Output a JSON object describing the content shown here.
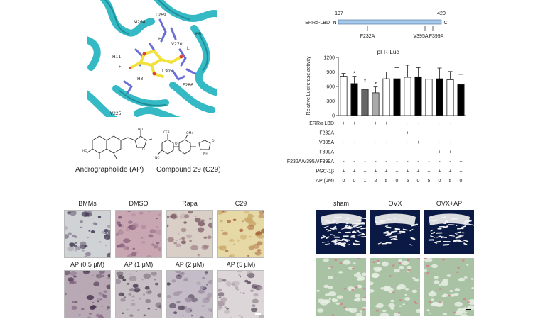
{
  "structure": {
    "residue_labels": [
      "M268",
      "L269",
      "H5",
      "V270",
      "L",
      "H11",
      "H",
      "L305",
      "H3",
      "F286",
      "V225",
      "F"
    ]
  },
  "compounds": [
    {
      "name": "Andrographolide (AP)"
    },
    {
      "name": "Compound 29 (C29)"
    }
  ],
  "construct": {
    "name": "ERRα-LBD",
    "n_term": "N",
    "c_term": "C",
    "start": "197",
    "end": "420",
    "mutations": [
      "F232A",
      "V395A",
      "F399A"
    ]
  },
  "chart_data": {
    "type": "bar",
    "title": "pFR-Luc",
    "ylabel": "Relative Luciferase activity",
    "ylim": [
      0,
      1200
    ],
    "yticks": [
      "0",
      "300",
      "600",
      "900",
      "1200"
    ],
    "values": [
      810,
      660,
      540,
      470,
      760,
      760,
      790,
      800,
      750,
      760,
      740,
      640
    ],
    "errors": [
      60,
      150,
      110,
      120,
      140,
      230,
      250,
      190,
      150,
      220,
      170,
      210
    ],
    "fills": [
      "white",
      "black",
      "#666666",
      "#aaaaaa",
      "white",
      "black",
      "white",
      "black",
      "white",
      "black",
      "white",
      "black"
    ],
    "significance": [
      "",
      "*",
      "*",
      "*",
      "",
      "",
      "",
      "",
      "",
      "",
      "",
      ""
    ],
    "conditions": [
      {
        "label": "ERRα-LBD",
        "marks": [
          "+",
          "+",
          "+",
          "+",
          "+",
          "-",
          "-",
          "-",
          "-",
          "-",
          "-",
          "-"
        ]
      },
      {
        "label": "F232A",
        "marks": [
          "-",
          "-",
          "-",
          "-",
          "-",
          "+",
          "+",
          "-",
          "-",
          "-",
          "-",
          "-"
        ]
      },
      {
        "label": "V395A",
        "marks": [
          "-",
          "-",
          "-",
          "-",
          "-",
          "-",
          "-",
          "+",
          "+",
          "-",
          "-",
          "-"
        ]
      },
      {
        "label": "F399A",
        "marks": [
          "-",
          "-",
          "-",
          "-",
          "-",
          "-",
          "-",
          "-",
          "-",
          "+",
          "+",
          "-"
        ]
      },
      {
        "label": "F232A/V395A/F399A",
        "marks": [
          "-",
          "-",
          "-",
          "-",
          "-",
          "-",
          "-",
          "-",
          "-",
          "-",
          "-",
          "+"
        ]
      },
      {
        "label": "PGC-1β",
        "marks": [
          "+",
          "+",
          "+",
          "+",
          "+",
          "+",
          "+",
          "+",
          "+",
          "+",
          "+",
          "+"
        ]
      },
      {
        "label": "AP (μM)",
        "marks": [
          "0",
          "0",
          "1",
          "2",
          "5",
          "0",
          "5",
          "0",
          "5",
          "0",
          "5",
          "0"
        ]
      }
    ]
  },
  "micrographs": {
    "row1": [
      "BMMs",
      "DMSO",
      "Rapa",
      "C29"
    ],
    "row2": [
      "AP (0.5 μM)",
      "AP (1 μM)",
      "AP (2 μM)",
      "AP (5 μM)"
    ]
  },
  "ovx": {
    "groups": [
      "sham",
      "OVX",
      "OVX+AP"
    ]
  },
  "colors": {
    "helix": "#2bb7c2",
    "ligand": "#f2e13a",
    "residue": "#6a6fd6",
    "ct_background": "#0b1a44",
    "trap_stain": "#8e5a86",
    "histo_green": "#a9c2a3"
  }
}
